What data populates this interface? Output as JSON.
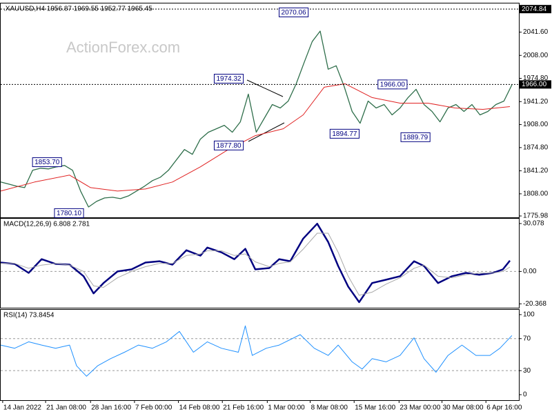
{
  "chart_data": [
    {
      "type": "line",
      "title": ".XAUUSD,H4  1956.87 1969.55 1952.77 1965.45",
      "watermark": "ActionForex.com",
      "xlim": [
        0,
        519
      ],
      "ylim": [
        1774,
        2083
      ],
      "yticks": [
        {
          "value": 2041.6,
          "label": "2041.60"
        },
        {
          "value": 2008,
          "label": "2008.00"
        },
        {
          "value": 1974.8,
          "label": "1974.80"
        },
        {
          "value": 1941.2,
          "label": "1941.20"
        },
        {
          "value": 1908,
          "label": "1908.00"
        },
        {
          "value": 1874.8,
          "label": "1874.80"
        },
        {
          "value": 1841.2,
          "label": "1841.20"
        },
        {
          "value": 1808,
          "label": "1808.00"
        },
        1775.98
      ],
      "hlines": [
        {
          "value": 2074.84,
          "label": "2074.84"
        },
        {
          "value": 1966,
          "label": "1966.00"
        }
      ],
      "annotations": [
        {
          "x": 308,
          "value": 2070.06,
          "label": "2070.06"
        },
        {
          "x": 243,
          "value": 1974.32,
          "label": "1974.32"
        },
        {
          "x": 61,
          "value": 1853.7,
          "label": "1853.70"
        },
        {
          "x": 83,
          "value": 1780.1,
          "label": "1780.10"
        },
        {
          "x": 243,
          "value": 1877.8,
          "label": "1877.80"
        },
        {
          "x": 359,
          "value": 1894.77,
          "label": "1894.77"
        },
        {
          "x": 407,
          "value": 1966,
          "label": "1966.00"
        },
        {
          "x": 430,
          "value": 1889.79,
          "label": "1889.79"
        }
      ],
      "series": [
        {
          "color": "#2e6e4a",
          "x": [
            0,
            8,
            16,
            24,
            32,
            40,
            48,
            56,
            64,
            72,
            80,
            88,
            96,
            104,
            112,
            120,
            128,
            136,
            144,
            152,
            160,
            168,
            176,
            184,
            192,
            200,
            208,
            216,
            224,
            232,
            240,
            248,
            256,
            264,
            272,
            280,
            288,
            296,
            304,
            312,
            320,
            328,
            336,
            344,
            352,
            360,
            368,
            376,
            384,
            392,
            400,
            408,
            416,
            424,
            432,
            440,
            448,
            456,
            464,
            472,
            480,
            488,
            496,
            504,
            512
          ],
          "values": [
            1825,
            1822,
            1819,
            1817,
            1842,
            1845,
            1844,
            1847,
            1849,
            1842,
            1812,
            1789,
            1797,
            1802,
            1803,
            1801,
            1805,
            1812,
            1819,
            1827,
            1832,
            1842,
            1857,
            1872,
            1865,
            1887,
            1897,
            1902,
            1907,
            1897,
            1912,
            1952,
            1897,
            1917,
            1937,
            1932,
            1942,
            1967,
            1998,
            2028,
            2043,
            1988,
            1993,
            1963,
            1927,
            1910,
            1942,
            1932,
            1937,
            1922,
            1932,
            1947,
            1959,
            1937,
            1927,
            1912,
            1932,
            1937,
            1927,
            1937,
            1922,
            1927,
            1937,
            1942,
            1965.45
          ]
        },
        {
          "color": "#e02020",
          "x": [
            0,
            34,
            69,
            90,
            117,
            145,
            172,
            200,
            228,
            255,
            283,
            303,
            324,
            345,
            372,
            400,
            428,
            455,
            483,
            510
          ],
          "values": [
            1812,
            1825,
            1835,
            1817,
            1812,
            1815,
            1825,
            1847,
            1872,
            1892,
            1902,
            1922,
            1962,
            1967,
            1947,
            1939,
            1939,
            1932,
            1930,
            1934
          ]
        }
      ]
    },
    {
      "type": "line",
      "title": "MACD(12,26,9) 6.808 2.781",
      "xlim": [
        0,
        519
      ],
      "ylim": [
        -22.8,
        33.1
      ],
      "yticks": [
        30.078,
        {
          "value": 0,
          "label": "0.00"
        },
        -20.368
      ],
      "levels": [
        0
      ],
      "series": [
        {
          "color": "#000080",
          "x": [
            0,
            14,
            28,
            41,
            55,
            69,
            83,
            93,
            103,
            117,
            131,
            145,
            159,
            172,
            186,
            200,
            207,
            221,
            234,
            245,
            255,
            269,
            279,
            290,
            303,
            317,
            328,
            338,
            348,
            359,
            372,
            386,
            400,
            414,
            424,
            438,
            452,
            466,
            479,
            493,
            503,
            510
          ],
          "values": [
            5.6,
            4.7,
            -0.9,
            7.7,
            4.7,
            4.3,
            -3,
            -13.8,
            -7.3,
            0,
            1.3,
            5.6,
            6.4,
            4.3,
            13.3,
            9.9,
            15,
            12,
            7.7,
            14.2,
            1.3,
            2.1,
            7.7,
            6.4,
            20.6,
            30,
            18.5,
            3.4,
            -9.5,
            -19.3,
            -7.3,
            -5.2,
            -3,
            6.4,
            3.4,
            -7.3,
            -3,
            -0.9,
            -2.1,
            -0.9,
            1.3,
            6.808
          ]
        },
        {
          "color": "#a8a8a8",
          "x": [
            0,
            14,
            28,
            41,
            55,
            69,
            83,
            93,
            103,
            117,
            131,
            145,
            159,
            172,
            186,
            200,
            207,
            221,
            234,
            245,
            255,
            269,
            279,
            290,
            303,
            317,
            328,
            338,
            348,
            359,
            372,
            386,
            400,
            414,
            424,
            438,
            452,
            466,
            479,
            493,
            503,
            510
          ],
          "values": [
            5,
            5,
            2,
            4,
            5,
            4,
            0,
            -9,
            -10,
            -4,
            0,
            3,
            5,
            5,
            10,
            11,
            13,
            13,
            10,
            11,
            6,
            3,
            5,
            6,
            14,
            24,
            24,
            12,
            -3,
            -15,
            -13,
            -8,
            -4,
            2,
            4,
            -3,
            -4,
            -2,
            -1,
            -1,
            0,
            2.781
          ]
        }
      ]
    },
    {
      "type": "line",
      "title": "RSI(14) 73.8454",
      "xlim": [
        0,
        519
      ],
      "ylim": [
        -6.9,
        106
      ],
      "yticks": [
        100,
        70,
        30,
        0
      ],
      "levels": [
        70,
        30
      ],
      "xticks": [
        {
          "value": 2,
          "label": "14 Jan 2022"
        },
        {
          "value": 45,
          "label": "21 Jan 08:00"
        },
        {
          "value": 90,
          "label": "28 Jan 16:00"
        },
        {
          "value": 134,
          "label": "7 Feb 00:00"
        },
        {
          "value": 178,
          "label": "14 Feb 08:00"
        },
        {
          "value": 222,
          "label": "21 Feb 16:00"
        },
        {
          "value": 267,
          "label": "1 Mar 00:00"
        },
        {
          "value": 310,
          "label": "8 Mar 08:00"
        },
        {
          "value": 354,
          "label": "15 Mar 16:00"
        },
        {
          "value": 399,
          "label": "23 Mar 00:00"
        },
        {
          "value": 442,
          "label": "30 Mar 08:00"
        },
        {
          "value": 486,
          "label": "6 Apr 16:00"
        }
      ],
      "series": [
        {
          "color": "#1e90ff",
          "x": [
            0,
            14,
            28,
            41,
            55,
            69,
            76,
            86,
            97,
            110,
            124,
            138,
            152,
            166,
            179,
            193,
            207,
            221,
            238,
            245,
            252,
            266,
            279,
            300,
            314,
            328,
            338,
            352,
            362,
            372,
            386,
            400,
            414,
            424,
            436,
            448,
            462,
            476,
            490,
            500,
            512
          ],
          "values": [
            62,
            58,
            66,
            62,
            58,
            62,
            36,
            23,
            36,
            45,
            53,
            62,
            58,
            66,
            79,
            53,
            66,
            58,
            53,
            86,
            49,
            58,
            62,
            75,
            58,
            49,
            62,
            41,
            32,
            45,
            41,
            49,
            71,
            45,
            28,
            49,
            62,
            49,
            49,
            58,
            73.8454
          ]
        }
      ]
    }
  ]
}
